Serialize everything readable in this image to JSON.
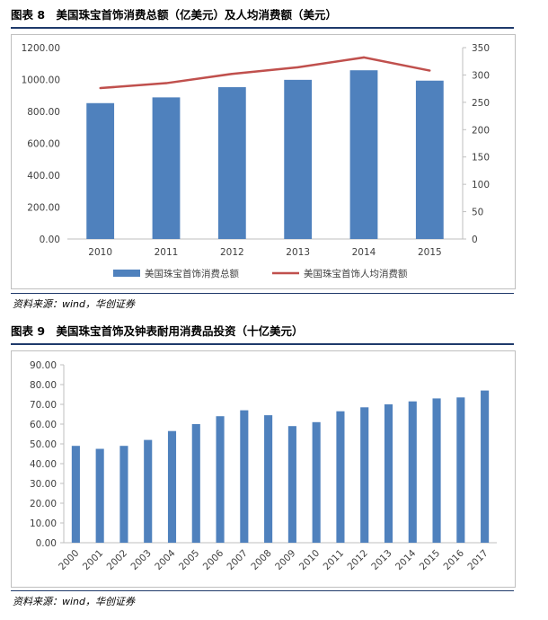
{
  "figures": [
    {
      "title": "图表 8　美国珠宝首饰消费总额（亿美元）及人均消费额（美元）",
      "source": "资料来源：wind，华创证券"
    },
    {
      "title": "图表 9　美国珠宝首饰及钟表耐用消费品投资（十亿美元）",
      "source": "资料来源：wind，华创证券"
    }
  ],
  "colors": {
    "bar": "#4f81bd",
    "line": "#c0504d",
    "rule": "#1f3a6b",
    "axis": "#bfbfbf"
  },
  "chart_data": [
    {
      "type": "bar",
      "categories": [
        "2010",
        "2011",
        "2012",
        "2013",
        "2014",
        "2015"
      ],
      "series": [
        {
          "name": "美国珠宝首饰消费总额",
          "type": "bar",
          "axis": "left",
          "values": [
            852,
            888,
            952,
            998,
            1058,
            993
          ]
        },
        {
          "name": "美国珠宝首饰人均消费额",
          "type": "line",
          "axis": "right",
          "values": [
            276,
            285,
            302,
            314,
            332,
            308
          ]
        }
      ],
      "ylim": [
        0,
        1200
      ],
      "y_ticks": [
        "0.00",
        "200.00",
        "400.00",
        "600.00",
        "800.00",
        "1000.00",
        "1200.00"
      ],
      "y2lim": [
        0,
        350
      ],
      "y2_ticks": [
        "0",
        "50",
        "100",
        "150",
        "200",
        "250",
        "300",
        "350"
      ],
      "legend": "bottom",
      "grid": false
    },
    {
      "type": "bar",
      "categories": [
        "2000",
        "2001",
        "2002",
        "2003",
        "2004",
        "2005",
        "2006",
        "2007",
        "2008",
        "2009",
        "2010",
        "2011",
        "2012",
        "2013",
        "2014",
        "2015",
        "2016",
        "2017"
      ],
      "values": [
        49.0,
        47.5,
        49.0,
        52.0,
        56.5,
        60.0,
        64.0,
        67.0,
        64.5,
        59.0,
        61.0,
        66.5,
        68.5,
        70.0,
        71.5,
        73.0,
        73.5,
        77.0
      ],
      "ylim": [
        0,
        90
      ],
      "y_ticks": [
        "0.00",
        "10.00",
        "20.00",
        "30.00",
        "40.00",
        "50.00",
        "60.00",
        "70.00",
        "80.00",
        "90.00"
      ],
      "legend": "none",
      "grid": false
    }
  ]
}
